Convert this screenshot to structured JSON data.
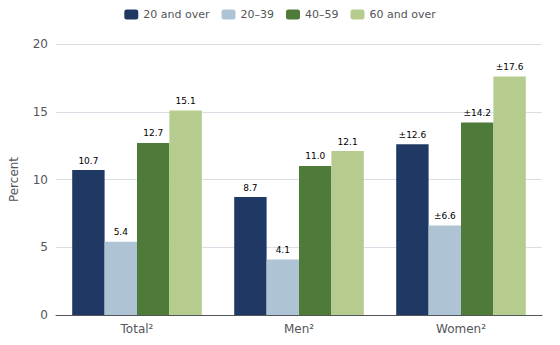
{
  "chart_data": {
    "type": "bar",
    "categories": [
      "Total²",
      "Men²",
      "Women²"
    ],
    "series": [
      {
        "name": "20 and over",
        "color": "#1f3864",
        "values": [
          10.7,
          8.7,
          12.6
        ],
        "value_labels": [
          "10.7",
          "8.7",
          "±12.6"
        ]
      },
      {
        "name": "20–39",
        "color": "#aec3d4",
        "values": [
          5.4,
          4.1,
          6.6
        ],
        "value_labels": [
          "5.4",
          "4.1",
          "±6.6"
        ]
      },
      {
        "name": "40–59",
        "color": "#4e7a3a",
        "values": [
          12.7,
          11.0,
          14.2
        ],
        "value_labels": [
          "12.7",
          "11.0",
          "±14.2"
        ]
      },
      {
        "name": "60 and over",
        "color": "#b5cc8e",
        "values": [
          15.1,
          12.1,
          17.6
        ],
        "value_labels": [
          "15.1",
          "12.1",
          "±17.6"
        ]
      }
    ],
    "ylabel": "Percent",
    "ylim": [
      0,
      20
    ],
    "yticks": [
      0,
      5,
      10,
      15,
      20
    ],
    "grid": true,
    "legend": "top",
    "data_labels": true
  }
}
